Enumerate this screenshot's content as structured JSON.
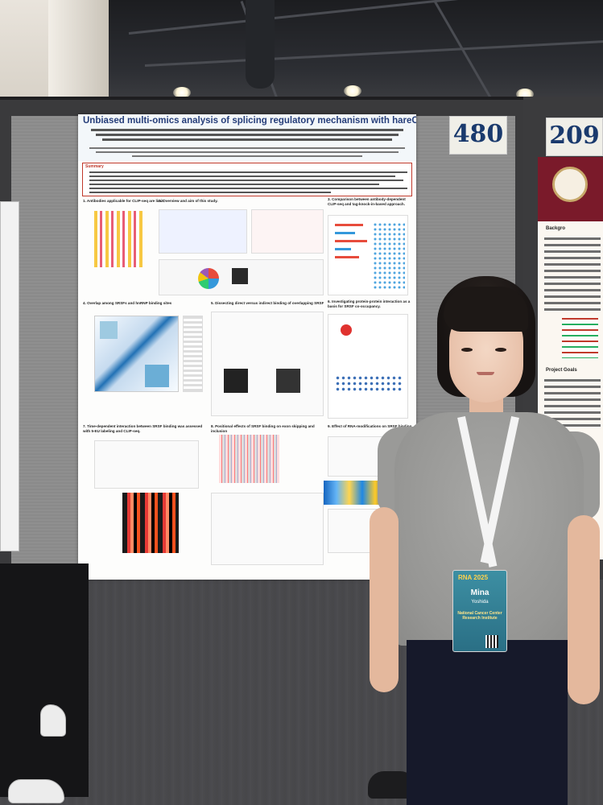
{
  "scene": {
    "description_tags": [
      "conference",
      "poster-session",
      "presenter"
    ],
    "board_numbers": [
      "480",
      "209"
    ]
  },
  "poster": {
    "title": "Unbiased multi-omics analysis of splicing regulatory mechanism with hareCLIP-seq",
    "summary_heading": "Summary",
    "sections": [
      "1. Antibodies applicable for CLIP-seq are limited in most RBPs.",
      "2. Overview and aim of this study.",
      "3. Comparison between antibody-dependent CLIP-seq and tag-knock-in-based approach.",
      "4. Overlap among SRSFs and hnRNP binding sites",
      "5. Dissecting direct versus indirect binding of overlapping SRSFs.",
      "6. Investigating protein-protein interaction as a basis for SRSF co-occupancy.",
      "7. Time-dependent interaction between SRSF binding was assessed with 5-EU labeling and CLIP-seq.",
      "8. Positional effects of SRSF binding on exon skipping and inclusion",
      "9. Effect of RNA-modifications on SRSF binding"
    ]
  },
  "neighbor_poster": {
    "heading_1": "Backgro",
    "heading_2": "Project Goals"
  },
  "badge": {
    "event": "RNA 2025",
    "first_name": "Mina",
    "last_name": "Yoshida",
    "organization": "National Cancer Center Research Institute"
  },
  "colors": {
    "poster_title": "#263e7a",
    "summary_border": "#c0392b",
    "board_number": "#1a3a6d",
    "neighbor_banner": "#7a1a2a"
  }
}
